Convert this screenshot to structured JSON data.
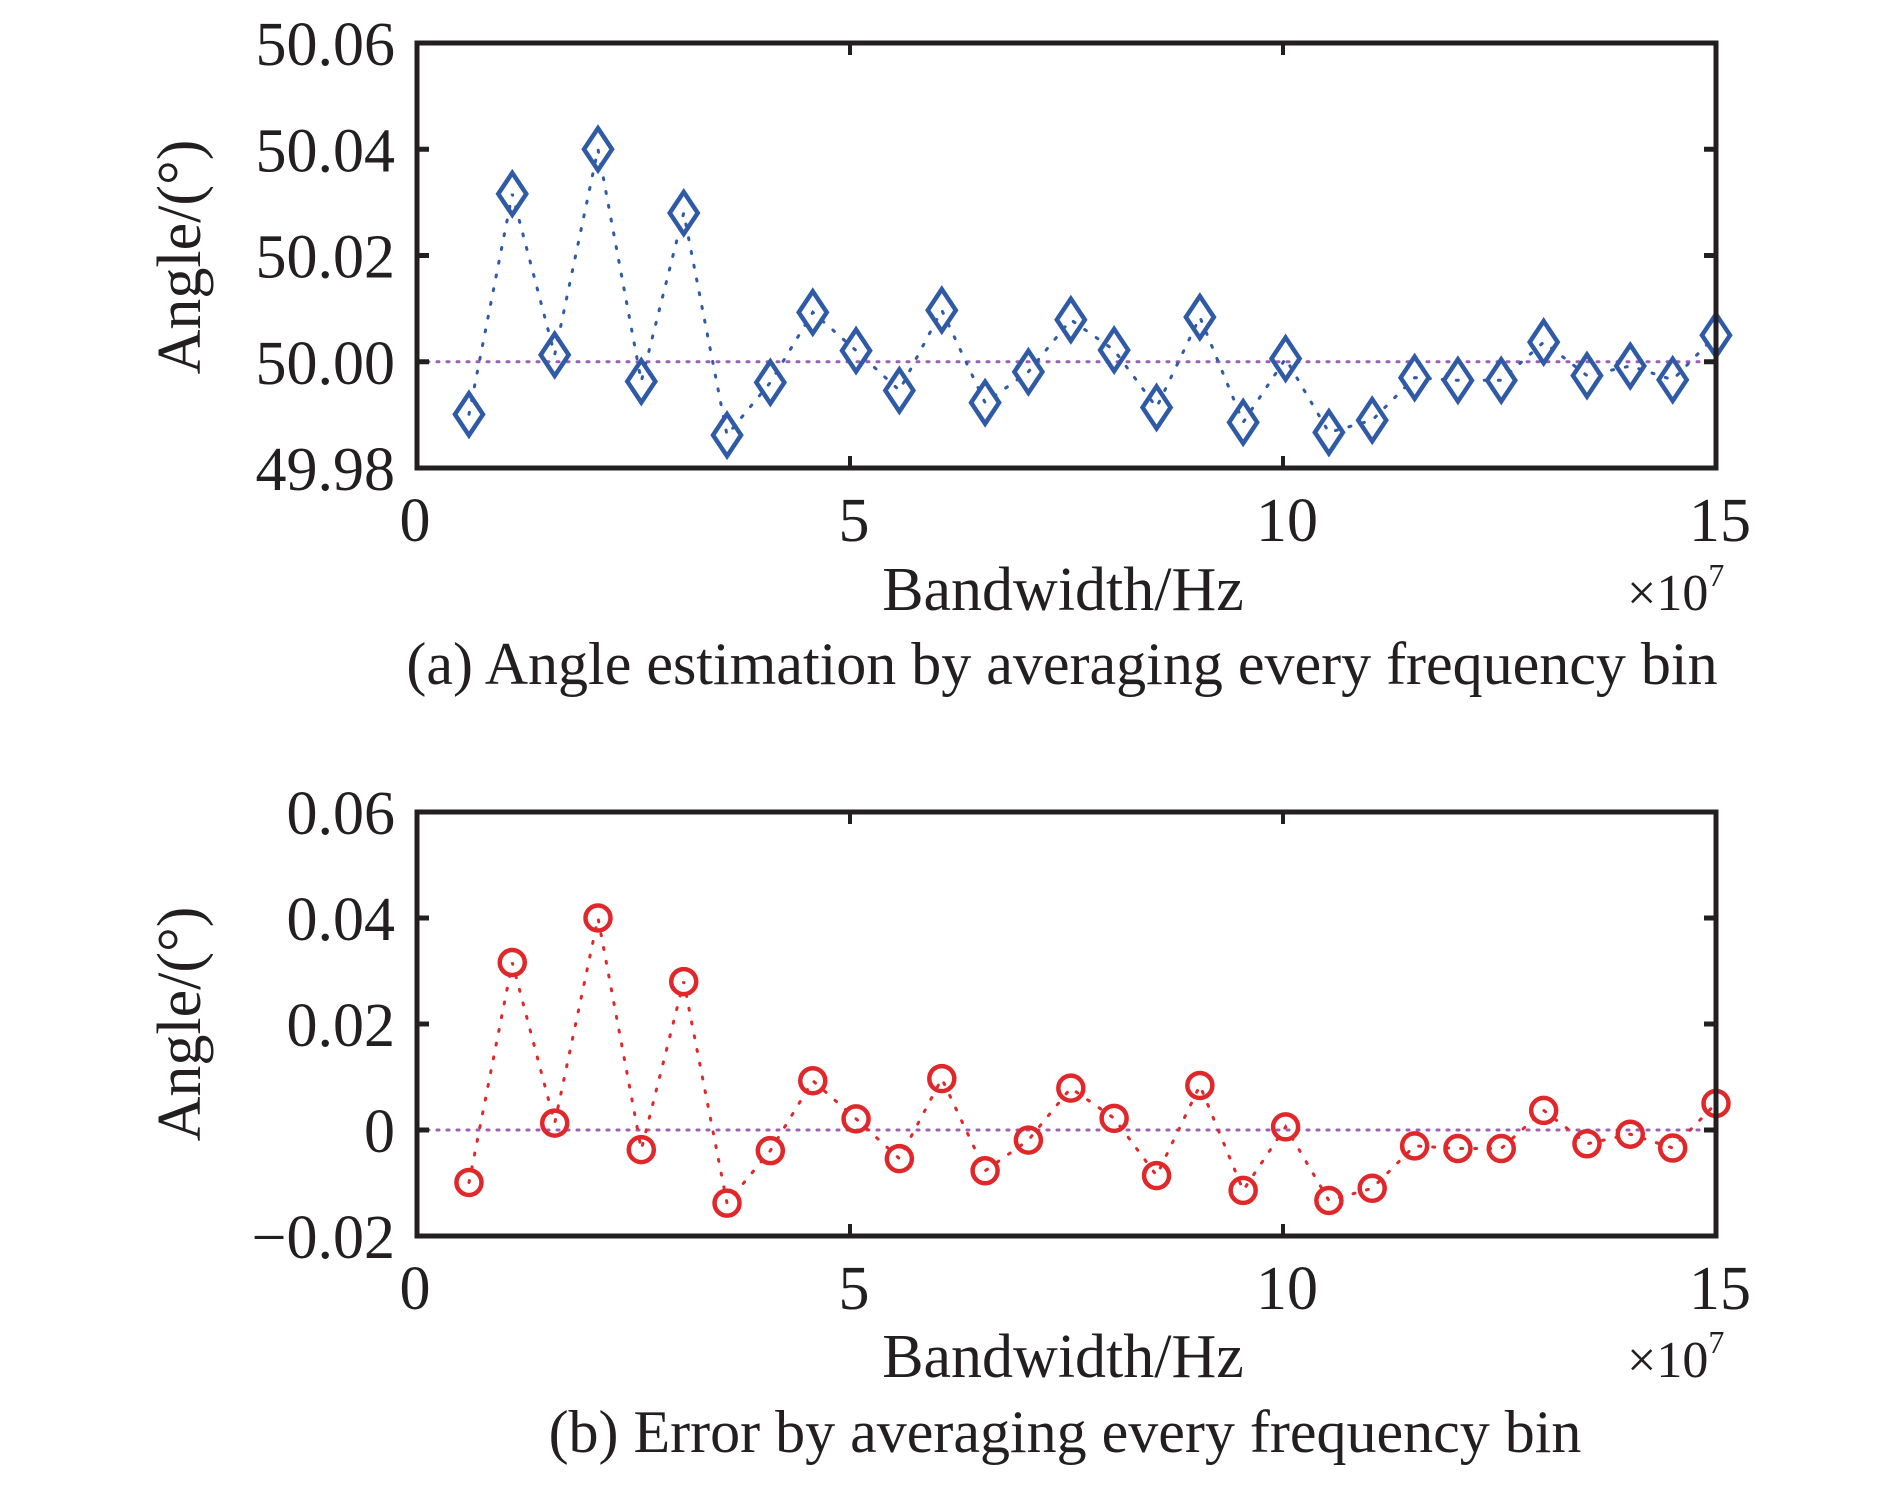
{
  "chart_data": [
    {
      "type": "line",
      "panel": "a",
      "caption": "(a) Angle estimation by averaging every frequency bin",
      "xlabel": "Bandwidth/Hz",
      "ylabel": "Angle/(°)",
      "x_multiplier": "×10",
      "x_multiplier_exp": "7",
      "xlim": [
        0,
        15
      ],
      "ylim": [
        49.98,
        50.06
      ],
      "xticks": [
        0,
        5,
        10,
        15
      ],
      "xtick_labels": [
        "0",
        "5",
        "10",
        "15"
      ],
      "yticks": [
        49.98,
        50.0,
        50.02,
        50.04,
        50.06
      ],
      "ytick_labels": [
        "49.98",
        "50.00",
        "50.02",
        "50.04",
        "50.06"
      ],
      "reference_line": 50.0,
      "grid": false,
      "marker": "diamond",
      "line_style": "dotted",
      "color": "#2f5aa6",
      "reference_color": "#9b5fb5",
      "x": [
        0.6,
        1.1,
        1.59,
        2.09,
        2.59,
        3.08,
        3.58,
        4.08,
        4.57,
        5.07,
        5.57,
        6.06,
        6.56,
        7.06,
        7.55,
        8.05,
        8.54,
        9.04,
        9.54,
        10.03,
        10.53,
        11.03,
        11.52,
        12.02,
        12.52,
        13.01,
        13.51,
        14.01,
        14.5,
        15.0
      ],
      "y": [
        49.9901,
        50.0316,
        50.0013,
        50.04,
        49.9963,
        50.028,
        49.9862,
        49.9961,
        50.0093,
        50.0021,
        49.9946,
        50.0097,
        49.9923,
        49.9981,
        50.0079,
        50.0022,
        49.9914,
        50.0084,
        49.9886,
        50.0006,
        49.9867,
        49.989,
        49.997,
        49.9965,
        49.9965,
        50.0037,
        49.9974,
        49.9992,
        49.9966,
        50.005
      ]
    },
    {
      "type": "line",
      "panel": "b",
      "caption": "(b) Error by averaging every frequency bin",
      "xlabel": "Bandwidth/Hz",
      "ylabel": "Angle/(°)",
      "x_multiplier": "×10",
      "x_multiplier_exp": "7",
      "xlim": [
        0,
        15
      ],
      "ylim": [
        -0.02,
        0.06
      ],
      "xticks": [
        0,
        5,
        10,
        15
      ],
      "xtick_labels": [
        "0",
        "5",
        "10",
        "15"
      ],
      "yticks": [
        -0.02,
        0,
        0.02,
        0.04,
        0.06
      ],
      "ytick_labels": [
        "−0.02",
        "0",
        "0.02",
        "0.04",
        "0.06"
      ],
      "reference_line": 0,
      "grid": false,
      "marker": "circle",
      "line_style": "dotted",
      "color": "#e0282b",
      "reference_color": "#9b5fb5",
      "x": [
        0.6,
        1.1,
        1.59,
        2.09,
        2.59,
        3.08,
        3.58,
        4.08,
        4.57,
        5.07,
        5.57,
        6.06,
        6.56,
        7.06,
        7.55,
        8.05,
        8.54,
        9.04,
        9.54,
        10.03,
        10.53,
        11.03,
        11.52,
        12.02,
        12.52,
        13.01,
        13.51,
        14.01,
        14.5,
        15.0
      ],
      "y": [
        -0.0099,
        0.0316,
        0.0013,
        0.04,
        -0.0037,
        0.028,
        -0.0138,
        -0.0039,
        0.0093,
        0.0021,
        -0.0054,
        0.0097,
        -0.0077,
        -0.0019,
        0.0079,
        0.0022,
        -0.0086,
        0.0084,
        -0.0114,
        0.0006,
        -0.0133,
        -0.011,
        -0.003,
        -0.0035,
        -0.0035,
        0.0037,
        -0.0026,
        -0.0008,
        -0.0034,
        0.005
      ]
    }
  ]
}
